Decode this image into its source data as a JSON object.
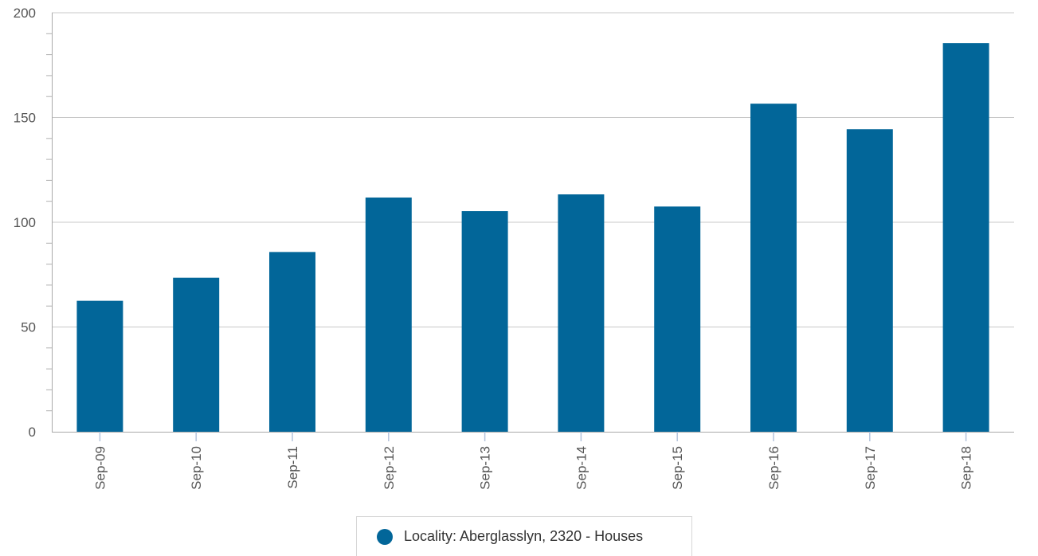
{
  "chart_data": {
    "type": "bar",
    "categories": [
      "Sep-09",
      "Sep-10",
      "Sep-11",
      "Sep-12",
      "Sep-13",
      "Sep-14",
      "Sep-15",
      "Sep-16",
      "Sep-17",
      "Sep-18"
    ],
    "series": [
      {
        "name": "Locality: Aberglasslyn, 2320 - Houses",
        "color": "#026699",
        "values": [
          62.5,
          73.5,
          85.8,
          111.8,
          105.3,
          113.3,
          107.5,
          156.6,
          144.4,
          185.5
        ]
      }
    ],
    "title": "",
    "xlabel": "",
    "ylabel": "",
    "ylim": [
      0,
      200
    ],
    "yticks": [
      "0",
      "50",
      "100",
      "150",
      "200"
    ],
    "grid": true,
    "legend_position": "bottom-center"
  }
}
